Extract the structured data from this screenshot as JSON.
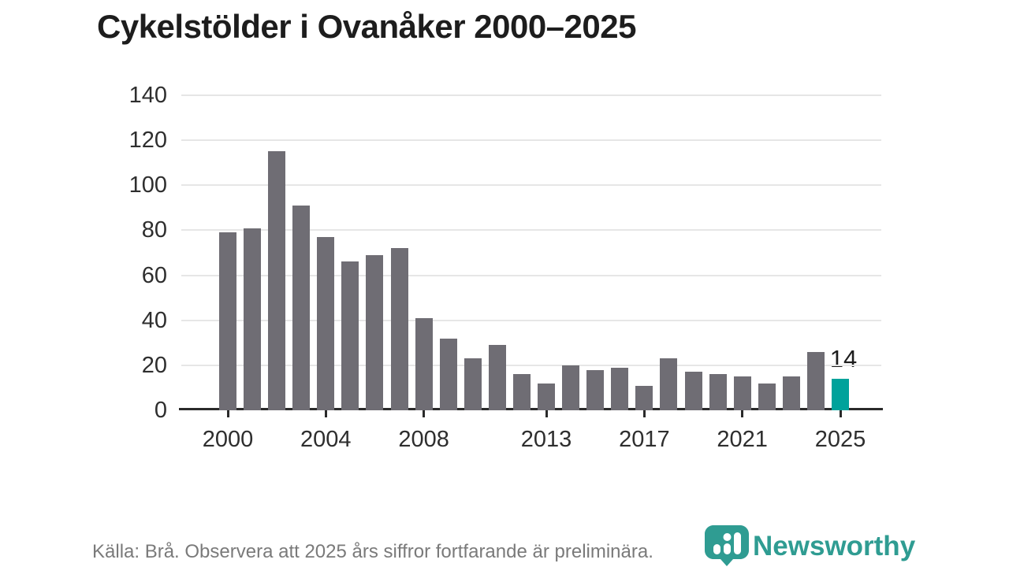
{
  "header": {
    "title": "Cykelstölder i Ovanåker 2000–2025"
  },
  "chart_data": {
    "type": "bar",
    "title": "Cykelstölder i Ovanåker 2000–2025",
    "xlabel": "",
    "ylabel": "",
    "ylim": [
      0,
      140
    ],
    "grid": "horizontal",
    "categories": [
      2000,
      2001,
      2002,
      2003,
      2004,
      2005,
      2006,
      2007,
      2008,
      2009,
      2010,
      2011,
      2012,
      2013,
      2014,
      2015,
      2016,
      2017,
      2018,
      2019,
      2020,
      2021,
      2022,
      2023,
      2024,
      2025
    ],
    "values": [
      79,
      81,
      115,
      91,
      77,
      66,
      69,
      72,
      41,
      32,
      23,
      29,
      16,
      12,
      20,
      18,
      19,
      11,
      23,
      17,
      16,
      15,
      12,
      15,
      26,
      14
    ],
    "y_ticks": [
      0,
      20,
      40,
      60,
      80,
      100,
      120,
      140
    ],
    "x_tick_labels": [
      "2000",
      "2004",
      "2008",
      "2013",
      "2017",
      "2021",
      "2025"
    ],
    "x_tick_indices": [
      0,
      4,
      8,
      13,
      17,
      21,
      25
    ],
    "highlight": {
      "year": 2025,
      "value": 14,
      "label": "14"
    },
    "colors": {
      "bar": "#6f6d74",
      "highlight_bar": "#00a29b",
      "gridline": "#e6e6e6",
      "axis": "#2a2a2a"
    },
    "legend": null
  },
  "footer": {
    "source_text": "Källa: Brå. Observera att 2025 års siffror fortfarande är preliminära.",
    "logo_text": "Newsworthy",
    "logo_color": "#2f9c92"
  }
}
